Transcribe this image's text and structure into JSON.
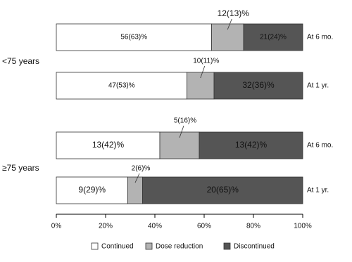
{
  "chart_data": {
    "type": "stacked-bar-horizontal",
    "groups": [
      "<75 years",
      "≥75 years"
    ],
    "categories": [
      "At 6 mo.",
      "At 1 yr.",
      "At 6 mo.",
      "At 1 yr."
    ],
    "series": [
      {
        "name": "Continued",
        "color": "#ffffff",
        "values": [
          63,
          53,
          42,
          29
        ],
        "value_labels": [
          "56(63)%",
          "47(53)%",
          "13(42)%",
          "9(29)%"
        ]
      },
      {
        "name": "Dose reduction",
        "color": "#b3b3b3",
        "values": [
          13,
          11,
          16,
          6
        ],
        "value_labels": [
          "12(13)%",
          "10(11)%",
          "5(16)%",
          "2(6)%"
        ]
      },
      {
        "name": "Discontinued",
        "color": "#555555",
        "values": [
          24,
          36,
          42,
          65
        ],
        "value_labels": [
          "21(24)%",
          "32(36)%",
          "13(42)%",
          "20(65)%"
        ]
      }
    ],
    "xlim": [
      0,
      100
    ],
    "xticks": [
      {
        "value": 0,
        "label": "0%"
      },
      {
        "value": 20,
        "label": "20%"
      },
      {
        "value": 40,
        "label": "40%"
      },
      {
        "value": 60,
        "label": "60%"
      },
      {
        "value": 80,
        "label": "80%"
      },
      {
        "value": 100,
        "label": "100%"
      }
    ],
    "legend": "bottom"
  }
}
